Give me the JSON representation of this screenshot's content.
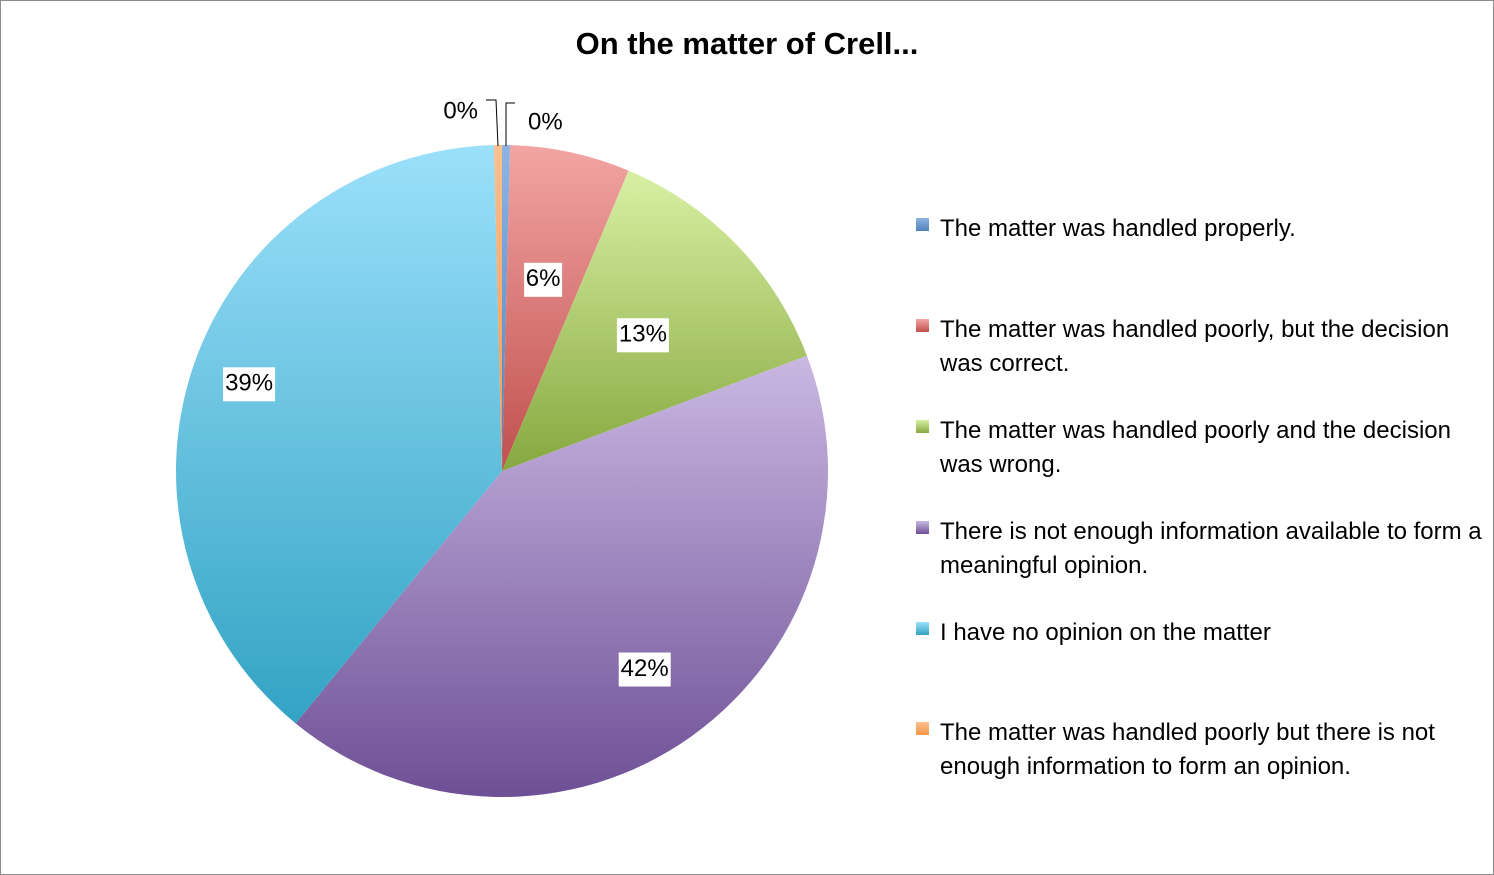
{
  "chart_data": {
    "type": "pie",
    "title": "On the matter of Crell...",
    "slices": [
      {
        "label": "The matter was handled properly.",
        "value": 0.4,
        "display": "0%",
        "color": "#4f81bd",
        "gradient": [
          "#8eb4e3",
          "#4f81bd"
        ]
      },
      {
        "label": "The matter was handled poorly, but the decision was correct.",
        "value": 6,
        "display": "6%",
        "color": "#c0504d",
        "gradient": [
          "#f2a5a3",
          "#c0504d"
        ]
      },
      {
        "label": "The matter was handled poorly and the decision was wrong.",
        "value": 13,
        "display": "13%",
        "color": "#9bbb59",
        "gradient": [
          "#d8f0a4",
          "#86a83f"
        ]
      },
      {
        "label": "There is not enough information available to form a meaningful opinion.",
        "value": 42,
        "display": "42%",
        "color": "#8064a2",
        "gradient": [
          "#c9b8e2",
          "#6e4f96"
        ]
      },
      {
        "label": "I have no opinion on the matter",
        "value": 39,
        "display": "39%",
        "color": "#4bacc6",
        "gradient": [
          "#9be0fa",
          "#33a3c4"
        ]
      },
      {
        "label": "The matter was handled poorly but there is not enough information to form an opinion.",
        "value": 0.4,
        "display": "0%",
        "color": "#f79646",
        "gradient": [
          "#fbc08f",
          "#f79646"
        ]
      }
    ],
    "start_angle_deg": 0,
    "direction": "clockwise",
    "legend_position": "right",
    "data_labels": true
  }
}
